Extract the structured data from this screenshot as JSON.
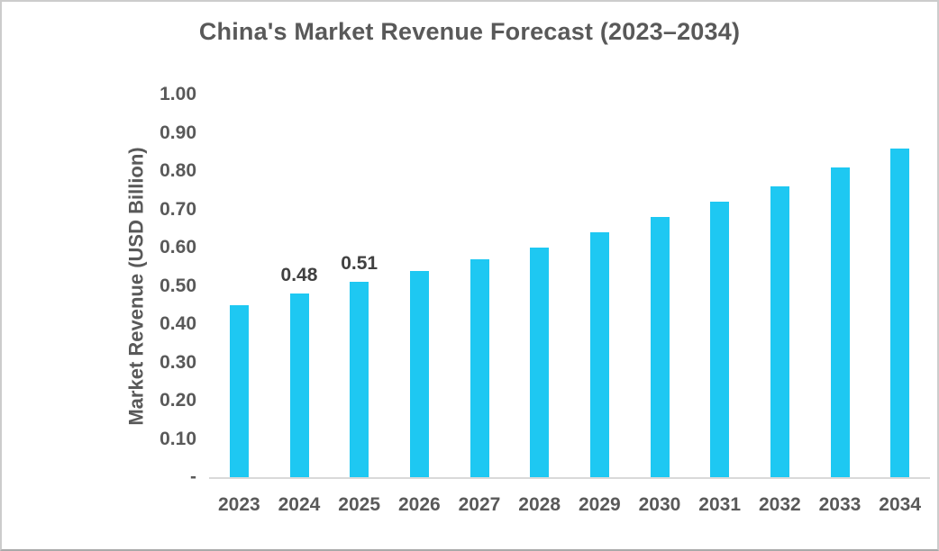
{
  "chart": {
    "title": "China's Market Revenue Forecast (2023–2034)",
    "y_axis_title": "Market Revenue (USD Billion)"
  },
  "chart_data": {
    "type": "bar",
    "title": "China's Market Revenue Forecast (2023–2034)",
    "xlabel": "",
    "ylabel": "Market Revenue (USD Billion)",
    "categories": [
      "2023",
      "2024",
      "2025",
      "2026",
      "2027",
      "2028",
      "2029",
      "2030",
      "2031",
      "2032",
      "2033",
      "2034"
    ],
    "values": [
      0.45,
      0.48,
      0.51,
      0.54,
      0.57,
      0.6,
      0.64,
      0.68,
      0.72,
      0.76,
      0.81,
      0.86
    ],
    "data_labels": [
      "",
      "0.48",
      "0.51",
      "",
      "",
      "",
      "",
      "",
      "",
      "",
      "",
      ""
    ],
    "ylim": [
      0,
      1.0
    ],
    "y_ticks": [
      {
        "label": "1.00",
        "value": 1.0
      },
      {
        "label": "0.90",
        "value": 0.9
      },
      {
        "label": "0.80",
        "value": 0.8
      },
      {
        "label": "0.70",
        "value": 0.7
      },
      {
        "label": "0.60",
        "value": 0.6
      },
      {
        "label": "0.50",
        "value": 0.5
      },
      {
        "label": "0.40",
        "value": 0.4
      },
      {
        "label": "0.30",
        "value": 0.3
      },
      {
        "label": "0.20",
        "value": 0.2
      },
      {
        "label": "0.10",
        "value": 0.1
      },
      {
        "label": "-",
        "value": 0.0
      }
    ],
    "grid": false,
    "legend": false,
    "bar_color": "#1ec8f2",
    "axis_line_color": "#d9d9d9",
    "text_color": "#595959",
    "data_label_color": "#404040"
  }
}
